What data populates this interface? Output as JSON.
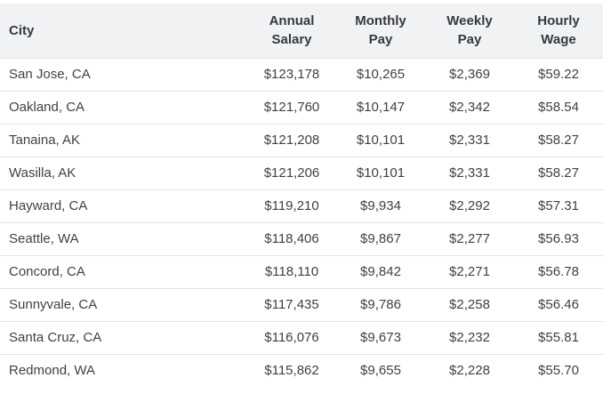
{
  "colors": {
    "header_bg": "#f0f2f4",
    "row_border": "#dfe2e5",
    "header_text": "#35393d",
    "body_text": "#3d4247"
  },
  "table": {
    "columns": [
      {
        "label": "City"
      },
      {
        "label": "Annual Salary"
      },
      {
        "label": "Monthly Pay"
      },
      {
        "label": "Weekly Pay"
      },
      {
        "label": "Hourly Wage"
      }
    ],
    "rows": [
      {
        "city": "San Jose, CA",
        "annual": "$123,178",
        "monthly": "$10,265",
        "weekly": "$2,369",
        "hourly": "$59.22"
      },
      {
        "city": "Oakland, CA",
        "annual": "$121,760",
        "monthly": "$10,147",
        "weekly": "$2,342",
        "hourly": "$58.54"
      },
      {
        "city": "Tanaina, AK",
        "annual": "$121,208",
        "monthly": "$10,101",
        "weekly": "$2,331",
        "hourly": "$58.27"
      },
      {
        "city": "Wasilla, AK",
        "annual": "$121,206",
        "monthly": "$10,101",
        "weekly": "$2,331",
        "hourly": "$58.27"
      },
      {
        "city": "Hayward, CA",
        "annual": "$119,210",
        "monthly": "$9,934",
        "weekly": "$2,292",
        "hourly": "$57.31"
      },
      {
        "city": "Seattle, WA",
        "annual": "$118,406",
        "monthly": "$9,867",
        "weekly": "$2,277",
        "hourly": "$56.93"
      },
      {
        "city": "Concord, CA",
        "annual": "$118,110",
        "monthly": "$9,842",
        "weekly": "$2,271",
        "hourly": "$56.78"
      },
      {
        "city": "Sunnyvale, CA",
        "annual": "$117,435",
        "monthly": "$9,786",
        "weekly": "$2,258",
        "hourly": "$56.46"
      },
      {
        "city": "Santa Cruz, CA",
        "annual": "$116,076",
        "monthly": "$9,673",
        "weekly": "$2,232",
        "hourly": "$55.81"
      },
      {
        "city": "Redmond, WA",
        "annual": "$115,862",
        "monthly": "$9,655",
        "weekly": "$2,228",
        "hourly": "$55.70"
      }
    ]
  }
}
